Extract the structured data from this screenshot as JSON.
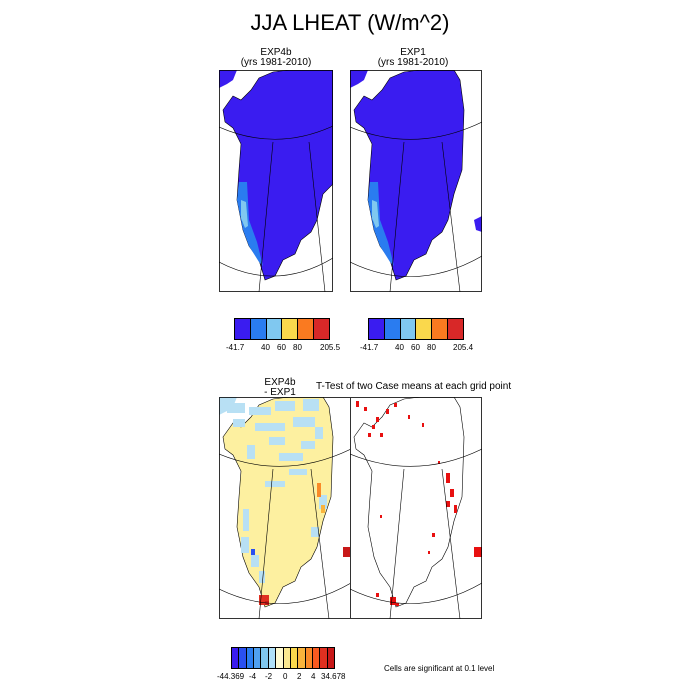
{
  "figure": {
    "title": "JJA LHEAT (W/m^2)"
  },
  "panels": {
    "exp4b": {
      "name": "EXP4b",
      "years": "(yrs 1981-2010)"
    },
    "exp1": {
      "name": "EXP1",
      "years": "(yrs 1981-2010)"
    },
    "diff": {
      "line1": "EXP4b",
      "line2": "- EXP1"
    },
    "ttest": {
      "title": "T-Test of two Case means at each grid point"
    }
  },
  "colorbars": {
    "exp4b": {
      "labels": [
        "-41.7",
        "40",
        "60",
        "80",
        "205.5"
      ],
      "colors": [
        "#3a1cf0",
        "#2a7cf0",
        "#80c8f0",
        "#fad84c",
        "#fa7a20",
        "#d82828"
      ]
    },
    "exp1": {
      "labels": [
        "-41.7",
        "40",
        "60",
        "80",
        "205.4"
      ],
      "colors": [
        "#3a1cf0",
        "#2a7cf0",
        "#80c8f0",
        "#fad84c",
        "#fa7a20",
        "#d82828"
      ]
    },
    "diff": {
      "labels": [
        "-44.369",
        "-4",
        "-2",
        "0",
        "2",
        "4",
        "34.678"
      ],
      "colors": [
        "#3a1cf0",
        "#2a50f0",
        "#2a7cf0",
        "#50a0f0",
        "#80c8f0",
        "#b0e0f8",
        "#fffad0",
        "#fae890",
        "#fad84c",
        "#fab43c",
        "#fa8a28",
        "#f85a20",
        "#e03020",
        "#c81818"
      ]
    }
  },
  "notes": {
    "significance": "Cells are significant at 0.1 level"
  },
  "colors": {
    "ice_low": "#3a1cf0",
    "coast_mid": "#2a7cf0",
    "coast_light": "#80c8f0",
    "diff_fill": "#fdf0a0",
    "diff_light_blue": "#b8e0f4",
    "significant": "#e81010"
  }
}
